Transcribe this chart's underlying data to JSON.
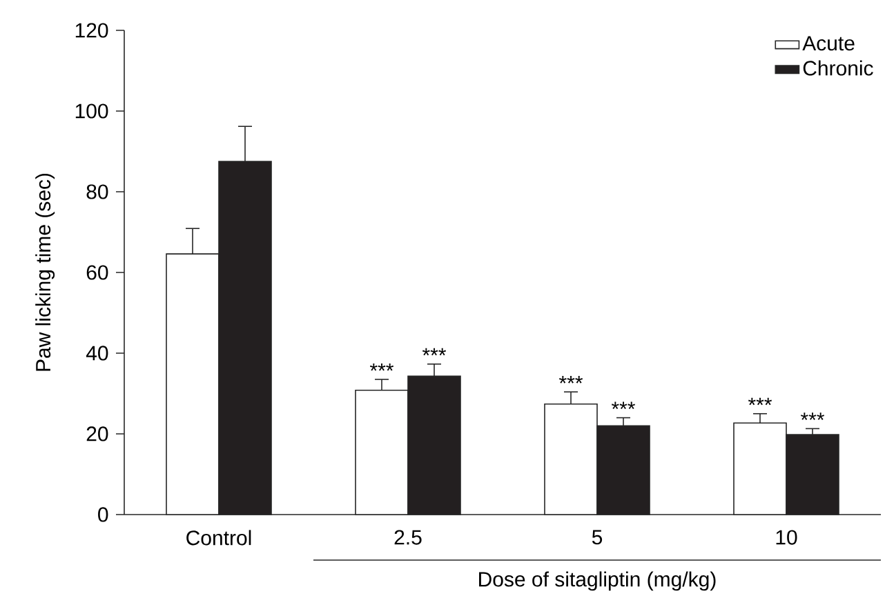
{
  "chart_data": {
    "type": "bar",
    "ylabel": "Paw licking time (sec)",
    "xlabel": "Dose of sitagliptin (mg/kg)",
    "categories": [
      "Control",
      "2.5",
      "5",
      "10"
    ],
    "series": [
      {
        "name": "Acute",
        "color": "#ffffff",
        "values": [
          64.6,
          30.8,
          27.4,
          22.7
        ],
        "errors": [
          [
            64.6,
            70.9
          ],
          [
            30.8,
            33.5
          ],
          [
            27.4,
            30.4
          ],
          [
            22.7,
            25.0
          ]
        ]
      },
      {
        "name": "Chronic",
        "color": "#231f20",
        "values": [
          87.5,
          34.3,
          22.0,
          19.8
        ],
        "errors": [
          [
            87.5,
            96.2
          ],
          [
            34.3,
            37.3
          ],
          [
            22.0,
            24.0
          ],
          [
            19.8,
            21.3
          ]
        ]
      }
    ],
    "ylim": [
      0,
      120
    ],
    "yticks": [
      0,
      20,
      40,
      60,
      80,
      100,
      120
    ],
    "legend": "top right",
    "grid": false,
    "annotations": [
      "***",
      "***",
      "***",
      "***",
      "***",
      "***"
    ]
  }
}
